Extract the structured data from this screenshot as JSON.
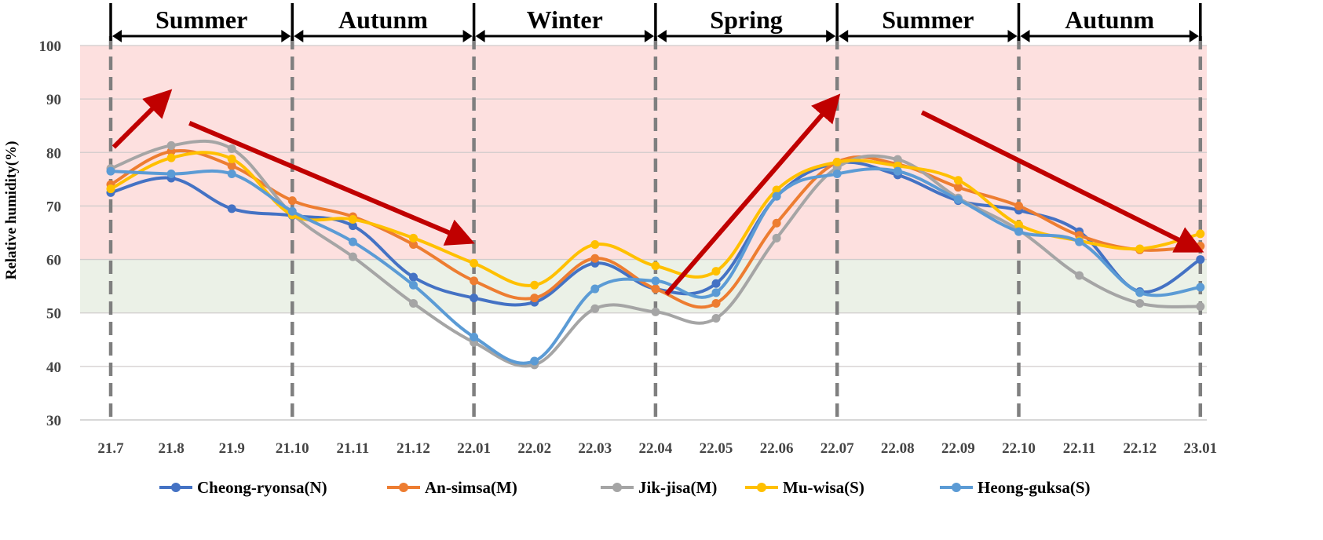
{
  "chart_data": {
    "type": "line",
    "title": "",
    "xlabel": "",
    "ylabel": "Relative humidity(%)",
    "ylim": [
      30,
      100
    ],
    "yticks": [
      30,
      40,
      50,
      60,
      70,
      80,
      90,
      100
    ],
    "categories": [
      "21.7",
      "21.8",
      "21.9",
      "21.10",
      "21.11",
      "21.12",
      "22.01",
      "22.02",
      "22.03",
      "22.04",
      "22.05",
      "22.06",
      "22.07",
      "22.08",
      "22.09",
      "22.10",
      "22.11",
      "22.12",
      "23.01"
    ],
    "bands": [
      {
        "from": 60,
        "to": 100,
        "color": "#fde0df"
      },
      {
        "from": 50,
        "to": 60,
        "color": "#ebf1e7"
      }
    ],
    "seasons": [
      {
        "label": "Summer",
        "from": 0,
        "to": 3
      },
      {
        "label": "Autunm",
        "from": 3,
        "to": 6
      },
      {
        "label": "Winter",
        "from": 6,
        "to": 9
      },
      {
        "label": "Spring",
        "from": 9,
        "to": 12
      },
      {
        "label": "Summer",
        "from": 12,
        "to": 15
      },
      {
        "label": "Autunm",
        "from": 15,
        "to": 18
      }
    ],
    "arrows": [
      {
        "from": [
          0.05,
          81
        ],
        "to": [
          0.85,
          90
        ]
      },
      {
        "from": [
          1.3,
          85.5
        ],
        "to": [
          5.8,
          64
        ]
      },
      {
        "from": [
          9.18,
          53.5
        ],
        "to": [
          11.9,
          89
        ]
      },
      {
        "from": [
          13.4,
          87.5
        ],
        "to": [
          17.85,
          62.5
        ]
      }
    ],
    "arrow_color": "#c00000",
    "series": [
      {
        "name": "Cheong-ryonsa(N)",
        "color": "#4472c4",
        "values": [
          72.5,
          75.2,
          69.5,
          68.2,
          66.3,
          56.7,
          52.8,
          52.0,
          59.3,
          54.5,
          55.5,
          71.8,
          78.0,
          75.8,
          71.0,
          69.2,
          65.2,
          54.0,
          60.0
        ]
      },
      {
        "name": "An-simsa(M)",
        "color": "#ed7d31",
        "values": [
          74.0,
          80.2,
          77.5,
          71.0,
          68.0,
          62.8,
          56.0,
          52.8,
          60.2,
          54.5,
          51.8,
          66.8,
          78.2,
          77.8,
          73.5,
          70.0,
          64.5,
          61.8,
          62.5
        ]
      },
      {
        "name": "Jik-jisa(M)",
        "color": "#a5a5a5",
        "values": [
          77.0,
          81.3,
          80.7,
          68.5,
          60.5,
          51.8,
          44.5,
          40.3,
          50.8,
          50.2,
          49.0,
          64.0,
          77.2,
          78.7,
          71.5,
          65.5,
          57.0,
          51.8,
          51.2
        ]
      },
      {
        "name": "Mu-wisa(S)",
        "color": "#ffc000",
        "values": [
          73.2,
          79.0,
          78.8,
          68.3,
          67.5,
          64.0,
          59.3,
          55.2,
          62.8,
          58.8,
          57.8,
          73.0,
          78.2,
          77.5,
          74.8,
          66.5,
          63.5,
          62.0,
          64.8
        ]
      },
      {
        "name": "Heong-guksa(S)",
        "color": "#5b9bd5",
        "values": [
          76.5,
          76.0,
          76.0,
          69.0,
          63.3,
          55.2,
          45.5,
          41.0,
          54.5,
          56.0,
          53.8,
          71.8,
          76.0,
          76.5,
          71.2,
          65.2,
          63.3,
          53.8,
          54.8
        ]
      }
    ]
  }
}
